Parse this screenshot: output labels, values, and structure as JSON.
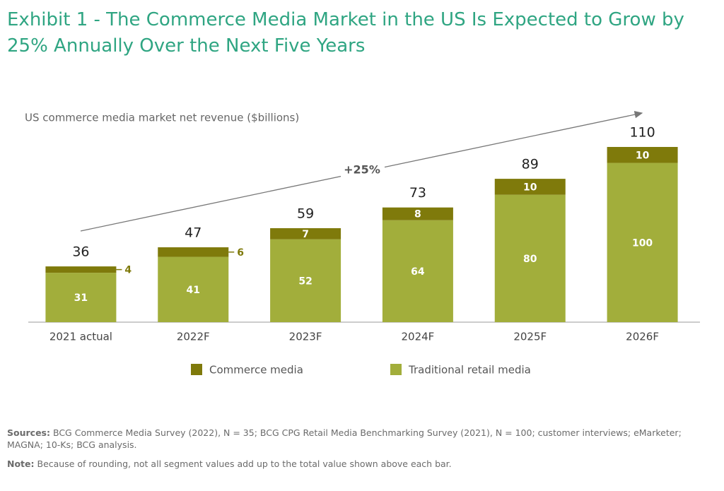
{
  "title": "Exhibit 1 - The Commerce Media Market in the US Is Expected to Grow by 25% Annually Over the Next Five Years",
  "chart_data": {
    "type": "stacked-bar",
    "subtitle": "US commerce media market net revenue ($billions)",
    "categories": [
      "2021 actual",
      "2022F",
      "2023F",
      "2024F",
      "2025F",
      "2026F"
    ],
    "series": [
      {
        "name": "Commerce media",
        "color": "#7f7a0b",
        "values": [
          4,
          6,
          7,
          8,
          10,
          10
        ]
      },
      {
        "name": "Traditional retail media",
        "color": "#a2ae3b",
        "values": [
          31,
          41,
          52,
          64,
          80,
          100
        ]
      }
    ],
    "totals": [
      36,
      47,
      59,
      73,
      89,
      110
    ],
    "annotation": "+25%"
  },
  "footer": {
    "sources_label": "Sources:",
    "sources": "BCG Commerce Media Survey (2022), N = 35; BCG CPG Retail Media Benchmarking Survey (2021), N = 100; customer interviews; eMarketer; MAGNA; 10-Ks; BCG analysis.",
    "note_label": "Note:",
    "note": "Because of rounding, not all segment values add up to the total value shown above each bar."
  }
}
